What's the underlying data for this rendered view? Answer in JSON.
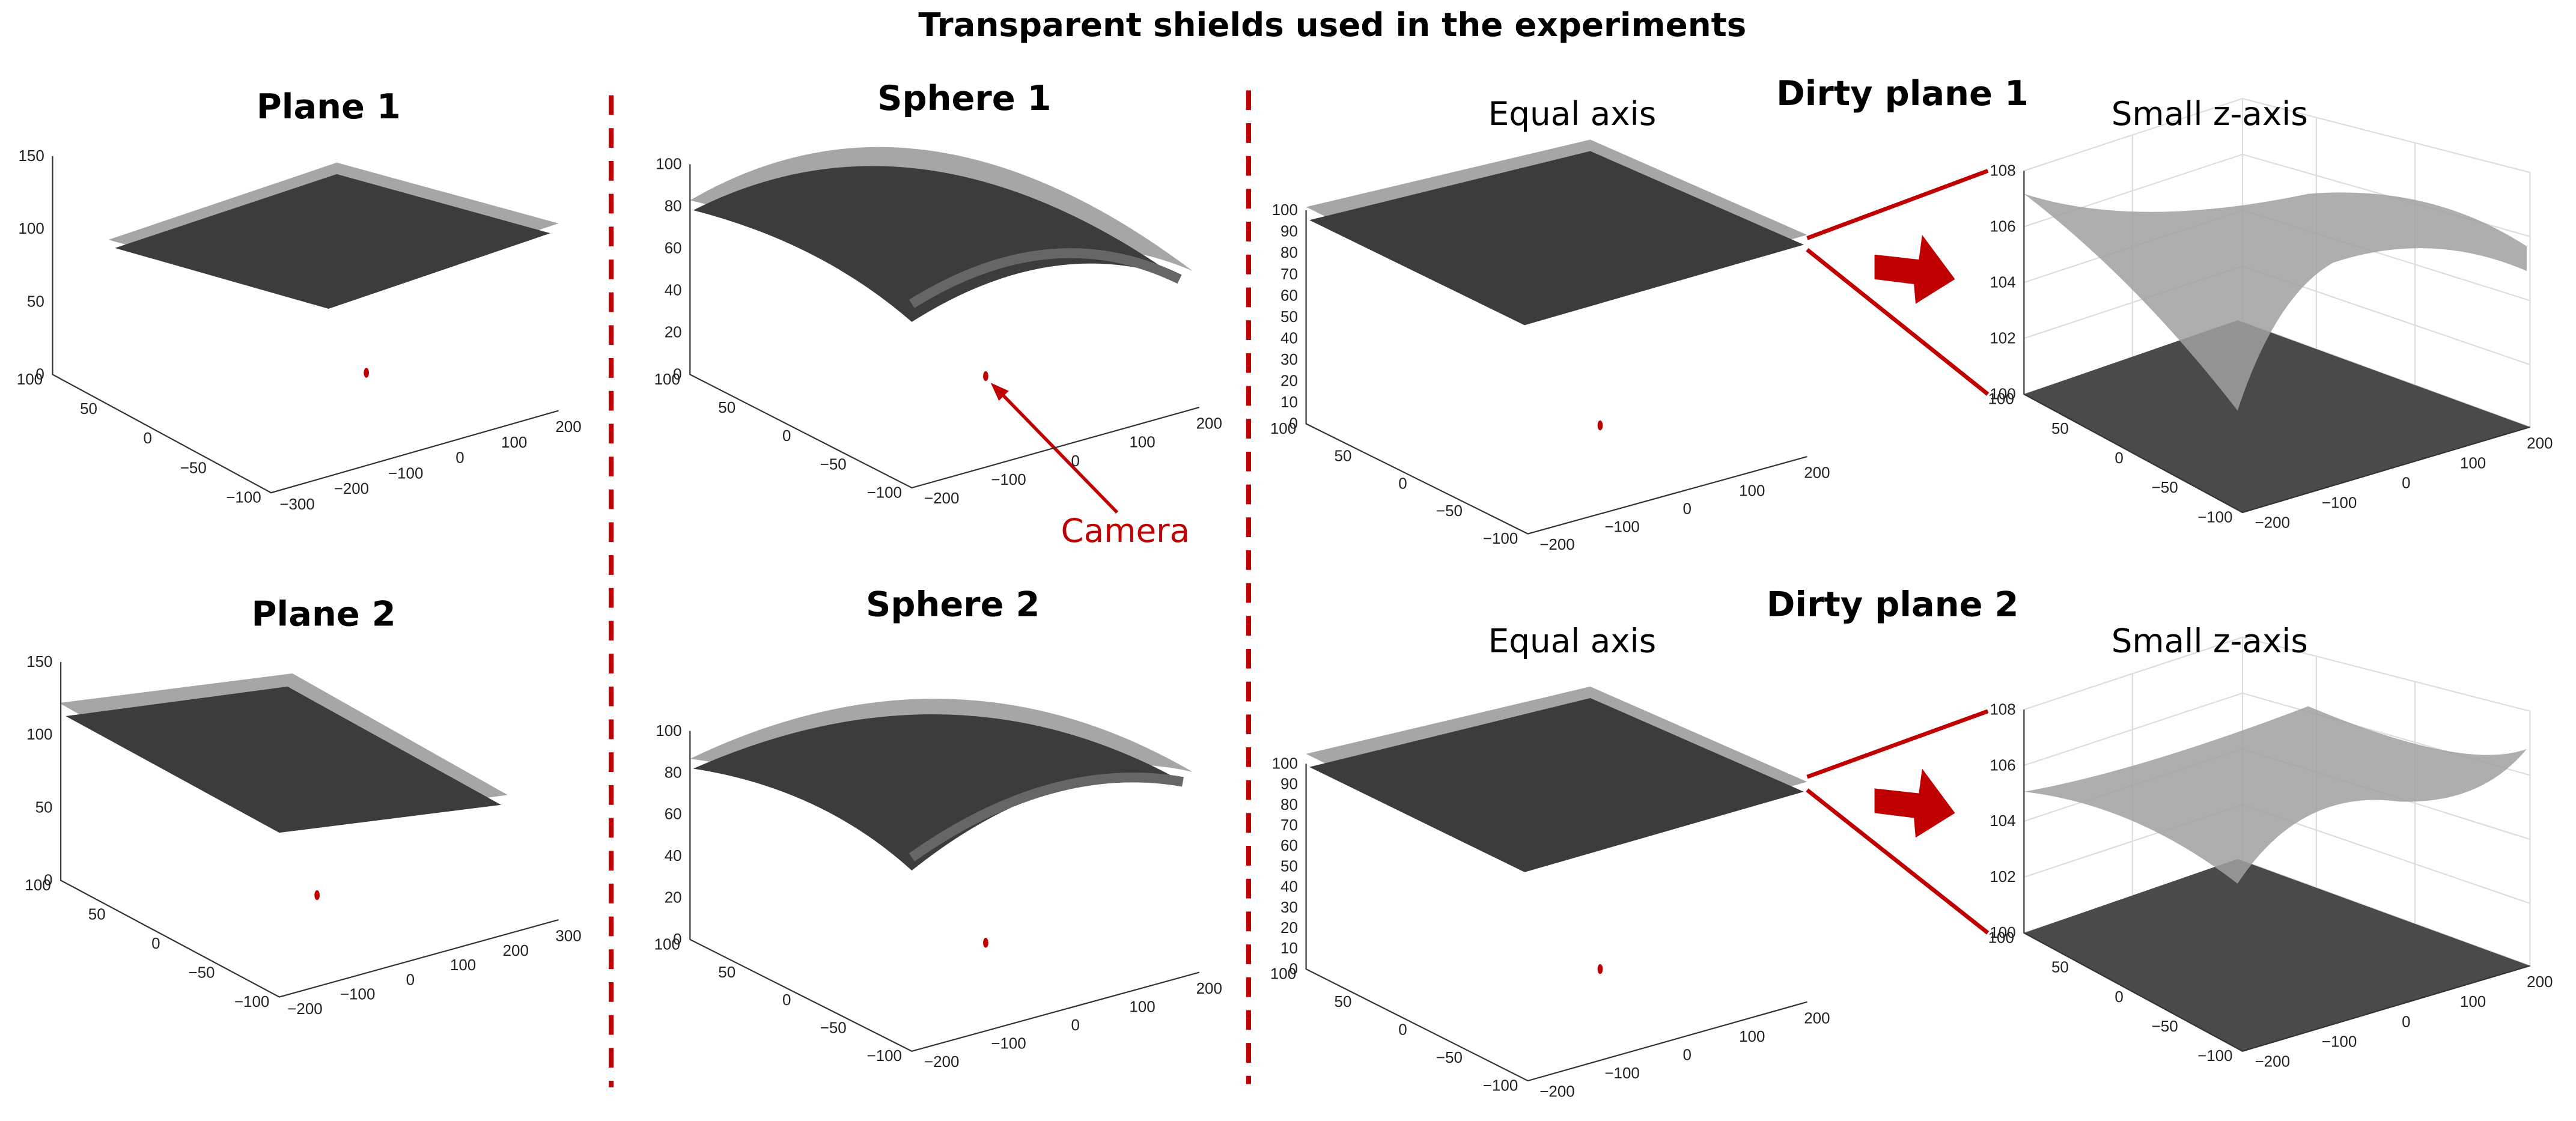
{
  "title": "Transparent shields used in the experiments",
  "camera_label": "Camera",
  "panels": [
    {
      "title": "Plane 1",
      "axes": [
        {
          "z_ticks": [
            "0",
            "50",
            "100",
            "150"
          ],
          "y_ticks": [
            "100",
            "50",
            "0",
            "−50",
            "−100"
          ],
          "x_ticks": [
            "−300",
            "−200",
            "−100",
            "0",
            "100",
            "200"
          ]
        }
      ]
    },
    {
      "title": "Plane 2",
      "axes": [
        {
          "z_ticks": [
            "0",
            "50",
            "100",
            "150"
          ],
          "y_ticks": [
            "100",
            "50",
            "0",
            "−50",
            "−100"
          ],
          "x_ticks": [
            "−200",
            "−100",
            "0",
            "100",
            "200",
            "300"
          ]
        }
      ]
    },
    {
      "title": "Sphere 1",
      "axes": [
        {
          "z_ticks": [
            "0",
            "20",
            "40",
            "60",
            "80",
            "100"
          ],
          "y_ticks": [
            "100",
            "50",
            "0",
            "−50",
            "−100"
          ],
          "x_ticks": [
            "−200",
            "−100",
            "0",
            "100",
            "200"
          ]
        }
      ]
    },
    {
      "title": "Sphere 2",
      "axes": [
        {
          "z_ticks": [
            "0",
            "20",
            "40",
            "60",
            "80",
            "100"
          ],
          "y_ticks": [
            "100",
            "50",
            "0",
            "−50",
            "−100"
          ],
          "x_ticks": [
            "−200",
            "−100",
            "0",
            "100",
            "200"
          ]
        }
      ]
    },
    {
      "title": "Dirty plane 1",
      "axes": [
        {
          "label": "Equal axis",
          "z_ticks": [
            "0",
            "10",
            "20",
            "30",
            "40",
            "50",
            "60",
            "70",
            "80",
            "90",
            "100"
          ],
          "y_ticks": [
            "100",
            "50",
            "0",
            "−50",
            "−100"
          ],
          "x_ticks": [
            "−200",
            "−100",
            "0",
            "100",
            "200"
          ]
        },
        {
          "label": "Small z-axis",
          "z_ticks": [
            "100",
            "102",
            "104",
            "106",
            "108"
          ],
          "y_ticks": [
            "100",
            "50",
            "0",
            "−50",
            "−100"
          ],
          "x_ticks": [
            "−200",
            "−100",
            "0",
            "100",
            "200"
          ]
        }
      ]
    },
    {
      "title": "Dirty plane 2",
      "axes": [
        {
          "label": "Equal axis",
          "z_ticks": [
            "0",
            "10",
            "20",
            "30",
            "40",
            "50",
            "60",
            "70",
            "80",
            "90",
            "100"
          ],
          "y_ticks": [
            "100",
            "50",
            "0",
            "−50",
            "−100"
          ],
          "x_ticks": [
            "−200",
            "−100",
            "0",
            "100",
            "200"
          ]
        },
        {
          "label": "Small z-axis",
          "z_ticks": [
            "100",
            "102",
            "104",
            "106",
            "108"
          ],
          "y_ticks": [
            "100",
            "50",
            "0",
            "−50",
            "−100"
          ],
          "x_ticks": [
            "−200",
            "−100",
            "0",
            "100",
            "200"
          ]
        }
      ]
    }
  ]
}
